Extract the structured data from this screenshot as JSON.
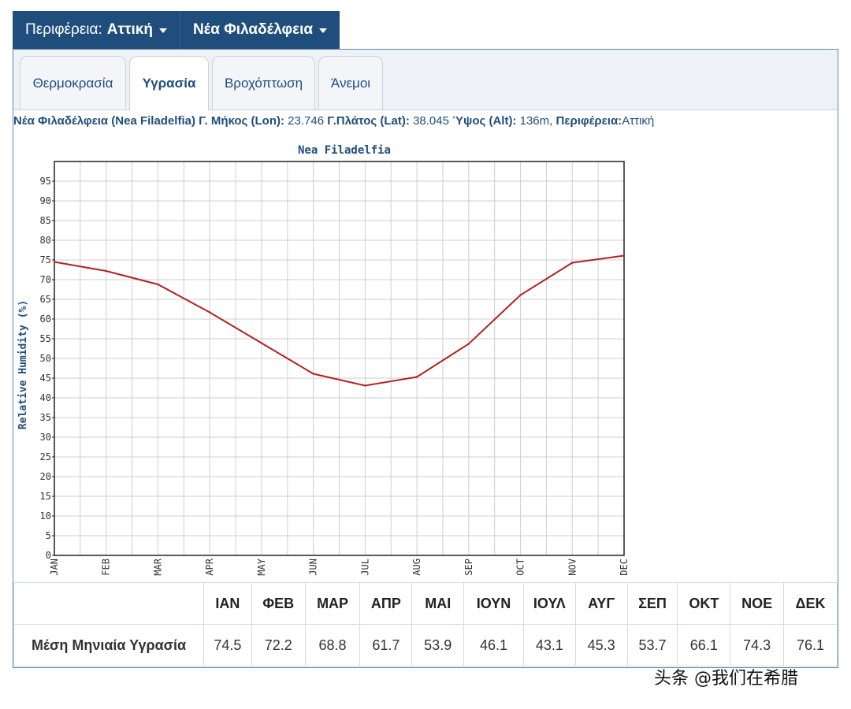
{
  "region_selector": {
    "label": "Περιφέρεια:",
    "value": "Αττική"
  },
  "station_selector": {
    "value": "Νέα Φιλαδέλφεια"
  },
  "tabs": [
    {
      "label": "Θερμοκρασία"
    },
    {
      "label": "Υγρασία"
    },
    {
      "label": "Βροχόπτωση"
    },
    {
      "label": "Άνεμοι"
    }
  ],
  "active_tab": "Υγρασία",
  "station_info": {
    "name_label": "Νέα Φιλαδέλφεια (Nea Filadelfia)",
    "lon_label": "Γ. Μήκος (Lon):",
    "lon_value": "23.746",
    "lat_label": "Γ.Πλάτος (Lat):",
    "lat_value": "38.045",
    "alt_label": "Ύψος (Alt):",
    "alt_value": "136m,",
    "region_label": "Περιφέρεια:",
    "region_value": "Αττική"
  },
  "chart_data": {
    "type": "line",
    "title": "Nea Filadelfia",
    "ylabel": "Relative Humidity (%)",
    "xlabel": "",
    "categories": [
      "JAN",
      "FEB",
      "MAR",
      "APR",
      "MAY",
      "JUN",
      "JUL",
      "AUG",
      "SEP",
      "OCT",
      "NOV",
      "DEC"
    ],
    "values": [
      74.5,
      72.2,
      68.8,
      61.7,
      53.9,
      46.1,
      43.1,
      45.3,
      53.7,
      66.1,
      74.3,
      76.1
    ],
    "ylim": [
      0,
      100
    ],
    "yticks": [
      0,
      5,
      10,
      15,
      20,
      25,
      30,
      35,
      40,
      45,
      50,
      55,
      60,
      65,
      70,
      75,
      80,
      85,
      90,
      95
    ],
    "grid": true,
    "line_color": "#b22222"
  },
  "table": {
    "headers": [
      "ΙΑΝ",
      "ΦΕΒ",
      "ΜΑΡ",
      "ΑΠΡ",
      "ΜΑΙ",
      "ΙΟΥΝ",
      "ΙΟΥΛ",
      "ΑΥΓ",
      "ΣΕΠ",
      "ΟΚΤ",
      "ΝΟΕ",
      "ΔΕΚ"
    ],
    "row_label": "Μέση Μηνιαία Υγρασία",
    "values": [
      "74.5",
      "72.2",
      "68.8",
      "61.7",
      "53.9",
      "46.1",
      "43.1",
      "45.3",
      "53.7",
      "66.1",
      "74.3",
      "76.1"
    ]
  },
  "watermark": "头条 @我们在希腊"
}
